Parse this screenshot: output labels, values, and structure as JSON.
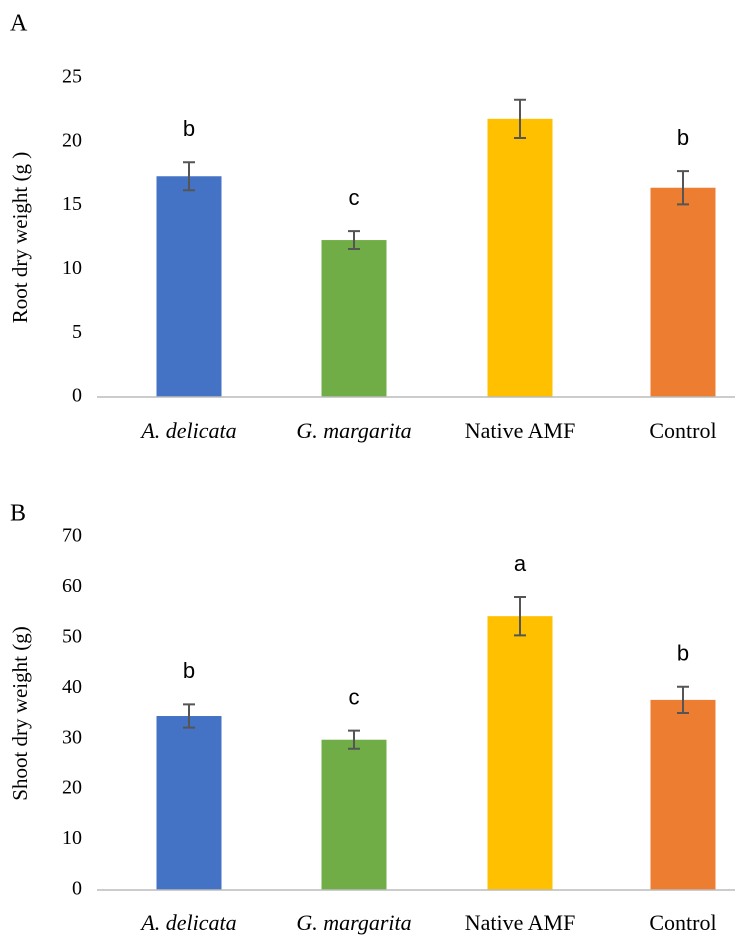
{
  "chart_data": [
    {
      "type": "bar",
      "panel": "A",
      "ylabel": "Root dry weight (g )",
      "categories": [
        "A. delicata",
        "G. margarita",
        "Native AMF",
        "Control"
      ],
      "values": [
        17.3,
        12.3,
        21.8,
        16.4
      ],
      "errors": [
        1.1,
        0.7,
        1.5,
        1.3
      ],
      "annotations": [
        "b",
        "c",
        null,
        "b"
      ],
      "colors": [
        "#4472c4",
        "#70ad47",
        "#ffc000",
        "#ed7d31"
      ],
      "ylim": [
        0,
        25
      ],
      "yticks": [
        0,
        5,
        10,
        15,
        20,
        25
      ]
    },
    {
      "type": "bar",
      "panel": "B",
      "ylabel": "Shoot dry weight (g)",
      "categories": [
        "A. delicata",
        "G. margarita",
        "Native AMF",
        "Control"
      ],
      "values": [
        34.5,
        29.8,
        54.3,
        37.7
      ],
      "errors": [
        2.3,
        1.8,
        3.8,
        2.6
      ],
      "annotations": [
        "b",
        "c",
        "a",
        "b"
      ],
      "colors": [
        "#4472c4",
        "#70ad47",
        "#ffc000",
        "#ed7d31"
      ],
      "ylim": [
        0,
        70
      ],
      "yticks": [
        0,
        10,
        20,
        30,
        40,
        50,
        60,
        70
      ]
    }
  ]
}
